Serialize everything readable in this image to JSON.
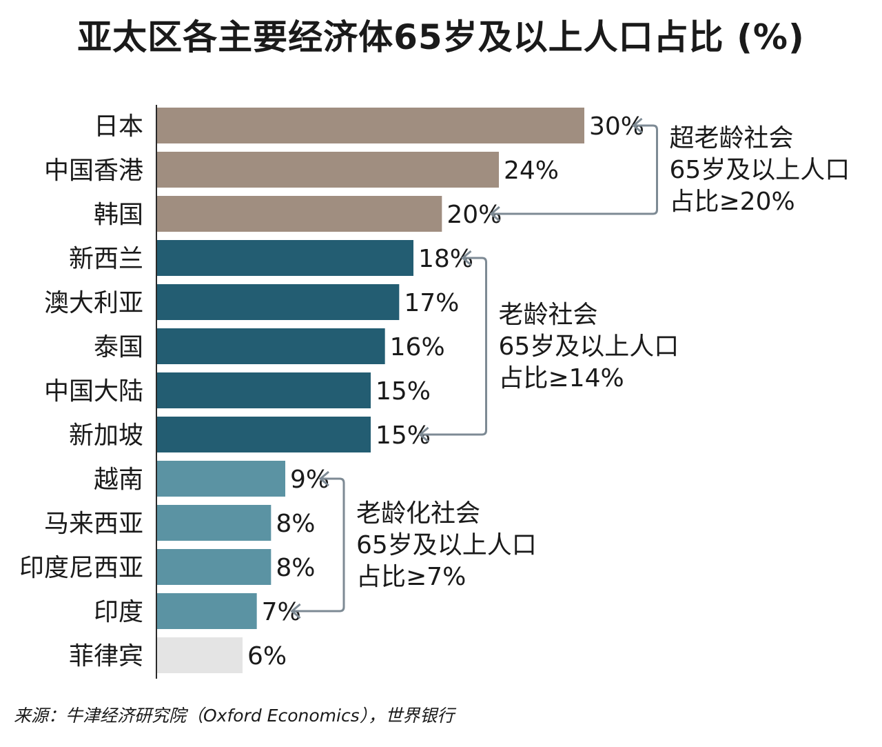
{
  "chart_data": {
    "type": "bar",
    "orientation": "horizontal",
    "title": "亚太区各主要经济体65岁及以上人口占比 (%)",
    "categories": [
      "日本",
      "中国香港",
      "韩国",
      "新西兰",
      "澳大利亚",
      "泰国",
      "中国大陆",
      "新加坡",
      "越南",
      "马来西亚",
      "印度尼西亚",
      "印度",
      "菲律宾"
    ],
    "values": [
      30,
      24,
      20,
      18,
      17,
      16,
      15,
      15,
      9,
      8,
      8,
      7,
      6
    ],
    "value_labels": [
      "30%",
      "24%",
      "20%",
      "18%",
      "17%",
      "16%",
      "15%",
      "15%",
      "9%",
      "8%",
      "8%",
      "7%",
      "6%"
    ],
    "unit": "%",
    "xlim": [
      0,
      30
    ],
    "grid": false,
    "groups": [
      {
        "lines": [
          "超老龄社会",
          "65岁及以上人口",
          "占比≥20%"
        ],
        "from": 0,
        "to": 2,
        "color": "#a08e80"
      },
      {
        "lines": [
          "老龄社会",
          "65岁及以上人口",
          "占比≥14%"
        ],
        "from": 3,
        "to": 7,
        "color": "#235d72"
      },
      {
        "lines": [
          "老龄化社会",
          "65岁及以上人口",
          "占比≥7%"
        ],
        "from": 8,
        "to": 11,
        "color": "#5b93a3"
      }
    ],
    "other_color": "#e4e4e4",
    "bracket_color": "#7d8a94"
  },
  "source": "来源：牛津经济研究院（Oxford Economics），世界银行"
}
